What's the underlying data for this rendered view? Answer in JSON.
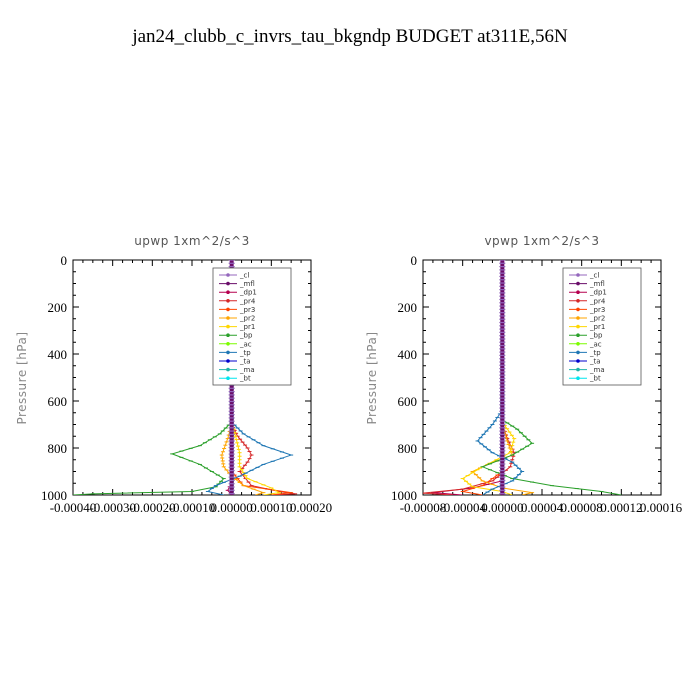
{
  "suptitle": "jan24_clubb_c_invrs_tau_bkgndp  BUDGET at311E,56N",
  "chart_data": [
    {
      "type": "line",
      "title": "upwp   1xm^2/s^3",
      "ylabel": "Pressure [hPa]",
      "xlim": [
        -0.0004,
        0.0002
      ],
      "ylim": [
        1000,
        0
      ],
      "x_ticks": [
        -0.0004,
        -0.0003,
        -0.0002,
        -0.0001,
        0.0,
        0.0001,
        0.0002
      ],
      "x_tick_labels": [
        "-0.00040",
        "-0.00030",
        "-0.00020",
        "-0.00010",
        "0.00000",
        "0.00010",
        "0.00020"
      ],
      "y_ticks": [
        0,
        200,
        400,
        600,
        800,
        1000
      ],
      "legend_position": "top-right",
      "series": [
        {
          "name": "_cl",
          "color": "#9467bd",
          "points": [
            [
              0,
              0
            ],
            [
              0,
              1000
            ]
          ]
        },
        {
          "name": "_mfl",
          "color": "#6a0d6a",
          "points": [
            [
              0,
              0
            ],
            [
              0,
              1000
            ]
          ]
        },
        {
          "name": "_dp1",
          "color": "#b5004f",
          "points": [
            [
              0,
              0
            ],
            [
              0,
              950
            ],
            [
              -1e-05,
              980
            ],
            [
              0,
              1000
            ]
          ]
        },
        {
          "name": "_pr4",
          "color": "#d62728",
          "points": [
            [
              0,
              0
            ],
            [
              0,
              700
            ],
            [
              1.5e-05,
              750
            ],
            [
              4e-05,
              800
            ],
            [
              5e-05,
              830
            ],
            [
              4e-05,
              860
            ],
            [
              2e-05,
              900
            ],
            [
              5e-05,
              960
            ],
            [
              0.00012,
              985
            ],
            [
              0.00016,
              995
            ],
            [
              0.0001,
              1000
            ]
          ]
        },
        {
          "name": "_pr3",
          "color": "#ff4500",
          "points": [
            [
              0,
              0
            ],
            [
              0,
              900
            ],
            [
              3e-05,
              960
            ],
            [
              0.00015,
              990
            ],
            [
              0.0001,
              1000
            ]
          ]
        },
        {
          "name": "_pr2",
          "color": "#ffa500",
          "points": [
            [
              0,
              0
            ],
            [
              0,
              700
            ],
            [
              -1e-05,
              760
            ],
            [
              -2.5e-05,
              830
            ],
            [
              -2e-05,
              880
            ],
            [
              0,
              920
            ],
            [
              3e-05,
              960
            ],
            [
              8e-05,
              990
            ],
            [
              6e-05,
              1000
            ]
          ]
        },
        {
          "name": "_pr1",
          "color": "#ffd700",
          "points": [
            [
              0,
              0
            ],
            [
              0,
              690
            ],
            [
              1e-05,
              750
            ],
            [
              2e-05,
              820
            ],
            [
              2e-05,
              880
            ],
            [
              4e-05,
              930
            ],
            [
              0.0001,
              970
            ],
            [
              0.00012,
              990
            ],
            [
              8e-05,
              1000
            ]
          ]
        },
        {
          "name": "_bp",
          "color": "#2ca02c",
          "points": [
            [
              0,
              0
            ],
            [
              0,
              690
            ],
            [
              -3e-05,
              740
            ],
            [
              -8e-05,
              790
            ],
            [
              -0.00015,
              825
            ],
            [
              -8e-05,
              870
            ],
            [
              -2e-05,
              930
            ],
            [
              -4e-05,
              965
            ],
            [
              -0.0001,
              985
            ],
            [
              -0.00035,
              995
            ],
            [
              -0.0004,
              1000
            ]
          ]
        },
        {
          "name": "_ac",
          "color": "#7cfc00",
          "points": [
            [
              0,
              0
            ],
            [
              0,
              1000
            ]
          ]
        },
        {
          "name": "_tp",
          "color": "#1f77b4",
          "points": [
            [
              0,
              0
            ],
            [
              0,
              690
            ],
            [
              3e-05,
              740
            ],
            [
              8e-05,
              790
            ],
            [
              0.00015,
              830
            ],
            [
              8e-05,
              870
            ],
            [
              2e-05,
              920
            ],
            [
              -4e-05,
              960
            ],
            [
              -6e-05,
              985
            ],
            [
              -2e-05,
              1000
            ]
          ]
        },
        {
          "name": "_ta",
          "color": "#0000cd",
          "points": [
            [
              0,
              0
            ],
            [
              0,
              1000
            ]
          ]
        },
        {
          "name": "_ma",
          "color": "#20b2aa",
          "points": [
            [
              0,
              0
            ],
            [
              0,
              1000
            ]
          ]
        },
        {
          "name": "_bt",
          "color": "#00e5ee",
          "points": [
            [
              0,
              0
            ],
            [
              0,
              1000
            ]
          ]
        }
      ]
    },
    {
      "type": "line",
      "title": "vpwp   1xm^2/s^3",
      "ylabel": "Pressure [hPa]",
      "xlim": [
        -8e-05,
        0.00016
      ],
      "ylim": [
        1000,
        0
      ],
      "x_ticks": [
        -8e-05,
        -4e-05,
        0.0,
        4e-05,
        8e-05,
        0.00012,
        0.00016
      ],
      "x_tick_labels": [
        "-0.00008",
        "-0.00004",
        "0.00000",
        "0.00004",
        "0.00008",
        "0.00012",
        "0.00016"
      ],
      "y_ticks": [
        0,
        200,
        400,
        600,
        800,
        1000
      ],
      "legend_position": "top-right",
      "series": [
        {
          "name": "_cl",
          "color": "#9467bd",
          "points": [
            [
              0,
              0
            ],
            [
              0,
              1000
            ]
          ]
        },
        {
          "name": "_mfl",
          "color": "#6a0d6a",
          "points": [
            [
              0,
              0
            ],
            [
              0,
              1000
            ]
          ]
        },
        {
          "name": "_dp1",
          "color": "#b5004f",
          "points": [
            [
              0,
              0
            ],
            [
              0,
              940
            ],
            [
              -3e-05,
              970
            ],
            [
              -7e-05,
              990
            ],
            [
              -4e-05,
              1000
            ]
          ]
        },
        {
          "name": "_pr4",
          "color": "#d62728",
          "points": [
            [
              0,
              0
            ],
            [
              0,
              700
            ],
            [
              5e-06,
              760
            ],
            [
              1.2e-05,
              820
            ],
            [
              8e-06,
              880
            ],
            [
              -1e-05,
              940
            ],
            [
              -4e-05,
              975
            ],
            [
              -8e-05,
              992
            ],
            [
              -5e-05,
              1000
            ]
          ]
        },
        {
          "name": "_pr3",
          "color": "#ff4500",
          "points": [
            [
              0,
              0
            ],
            [
              0,
              900
            ],
            [
              -2e-05,
              960
            ],
            [
              -4e-05,
              985
            ],
            [
              -2e-05,
              1000
            ]
          ]
        },
        {
          "name": "_pr2",
          "color": "#ffa500",
          "points": [
            [
              0,
              0
            ],
            [
              0,
              700
            ],
            [
              5e-06,
              770
            ],
            [
              1e-05,
              830
            ],
            [
              -1.5e-05,
              870
            ],
            [
              -3e-05,
              900
            ],
            [
              -2e-05,
              940
            ],
            [
              0,
              970
            ],
            [
              3e-05,
              990
            ],
            [
              2e-05,
              1000
            ]
          ]
        },
        {
          "name": "_pr1",
          "color": "#ffd700",
          "points": [
            [
              0,
              0
            ],
            [
              0,
              690
            ],
            [
              1.2e-05,
              760
            ],
            [
              8e-06,
              820
            ],
            [
              -2e-05,
              880
            ],
            [
              -4e-05,
              930
            ],
            [
              -3e-05,
              965
            ],
            [
              0,
              985
            ],
            [
              1e-05,
              1000
            ]
          ]
        },
        {
          "name": "_bp",
          "color": "#2ca02c",
          "points": [
            [
              0,
              0
            ],
            [
              0,
              680
            ],
            [
              1.5e-05,
              720
            ],
            [
              3e-05,
              780
            ],
            [
              1e-05,
              830
            ],
            [
              -2e-05,
              880
            ],
            [
              1e-05,
              930
            ],
            [
              5e-05,
              960
            ],
            [
              0.0001,
              985
            ],
            [
              0.00012,
              1000
            ]
          ]
        },
        {
          "name": "_ac",
          "color": "#7cfc00",
          "points": [
            [
              0,
              0
            ],
            [
              0,
              1000
            ]
          ]
        },
        {
          "name": "_tp",
          "color": "#1f77b4",
          "points": [
            [
              0,
              0
            ],
            [
              0,
              640
            ],
            [
              -1e-05,
              700
            ],
            [
              -2.5e-05,
              770
            ],
            [
              -1e-05,
              820
            ],
            [
              1e-05,
              860
            ],
            [
              2e-05,
              900
            ],
            [
              1e-05,
              940
            ],
            [
              -1e-05,
              975
            ],
            [
              -2e-05,
              1000
            ]
          ]
        },
        {
          "name": "_ta",
          "color": "#0000cd",
          "points": [
            [
              0,
              0
            ],
            [
              0,
              1000
            ]
          ]
        },
        {
          "name": "_ma",
          "color": "#20b2aa",
          "points": [
            [
              0,
              0
            ],
            [
              0,
              1000
            ]
          ]
        },
        {
          "name": "_bt",
          "color": "#00e5ee",
          "points": [
            [
              0,
              0
            ],
            [
              0,
              1000
            ]
          ]
        }
      ]
    }
  ]
}
